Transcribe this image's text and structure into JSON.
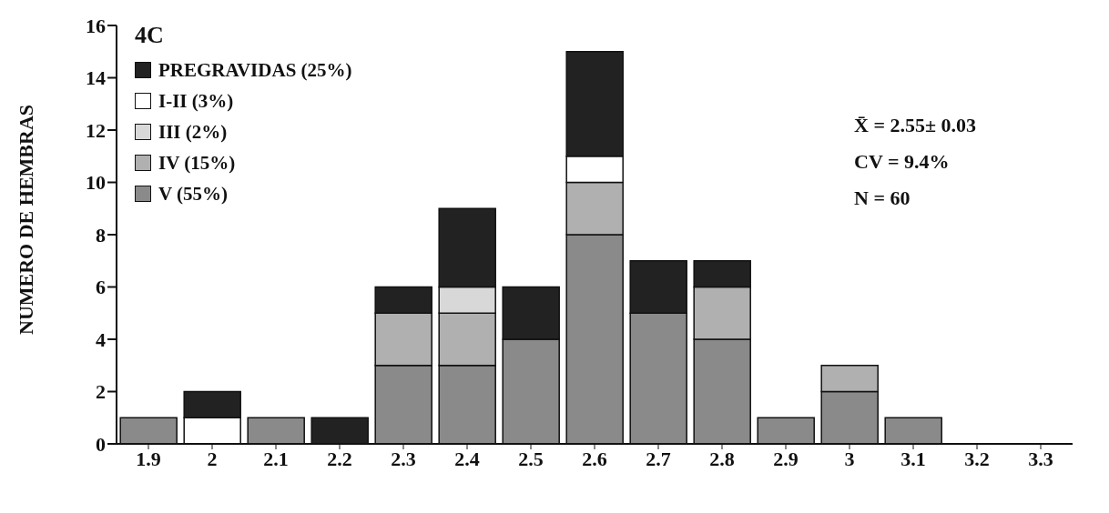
{
  "chart_data": {
    "type": "bar",
    "stacked": true,
    "title": "4C",
    "ylabel": "NUMERO DE HEMBRAS",
    "categories": [
      "1.9",
      "2",
      "2.1",
      "2.2",
      "2.3",
      "2.4",
      "2.5",
      "2.6",
      "2.7",
      "2.8",
      "2.9",
      "3",
      "3.1",
      "3.2",
      "3.3"
    ],
    "series": [
      {
        "name": "V (55%)",
        "color": "#8a8a8a",
        "values": [
          1,
          0,
          1,
          0,
          3,
          3,
          4,
          8,
          5,
          4,
          1,
          2,
          1,
          0,
          0
        ]
      },
      {
        "name": "IV (15%)",
        "color": "#b0b0b0",
        "values": [
          0,
          0,
          0,
          0,
          2,
          2,
          0,
          2,
          0,
          2,
          0,
          1,
          0,
          0,
          0
        ]
      },
      {
        "name": "III (2%)",
        "color": "#d8d8d8",
        "values": [
          0,
          0,
          0,
          0,
          0,
          1,
          0,
          0,
          0,
          0,
          0,
          0,
          0,
          0,
          0
        ]
      },
      {
        "name": "I-II (3%)",
        "color": "#ffffff",
        "values": [
          0,
          1,
          0,
          0,
          0,
          0,
          0,
          1,
          0,
          0,
          0,
          0,
          0,
          0,
          0
        ]
      },
      {
        "name": "PREGRAVIDAS (25%)",
        "color": "#222222",
        "values": [
          0,
          1,
          0,
          1,
          1,
          3,
          2,
          4,
          2,
          1,
          0,
          0,
          0,
          0,
          0
        ]
      }
    ],
    "ylim": [
      0,
      16
    ],
    "yticks": [
      0,
      2,
      4,
      6,
      8,
      10,
      12,
      14,
      16
    ],
    "grid": false,
    "legend": "top left",
    "annotations": [
      "X̄ = 2.55± 0.03",
      "CV = 9.4%",
      "N = 60"
    ]
  }
}
